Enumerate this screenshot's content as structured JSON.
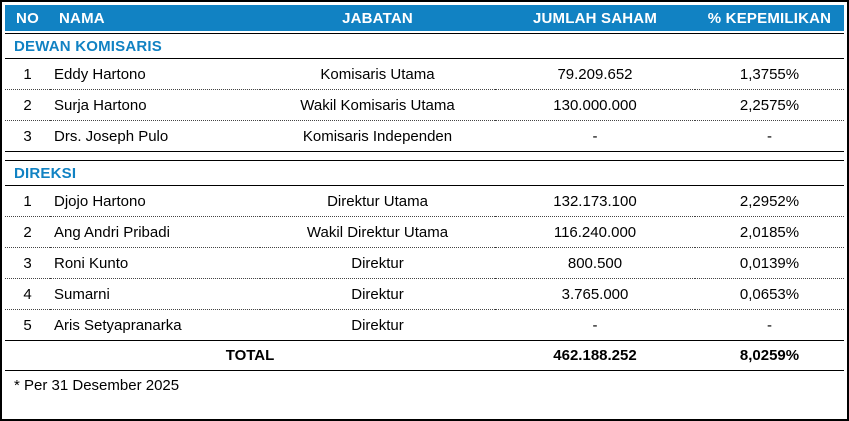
{
  "table": {
    "headers": [
      "NO",
      "NAMA",
      "JABATAN",
      "JUMLAH SAHAM",
      "% KEPEMILIKAN"
    ],
    "sections": [
      {
        "title": "DEWAN KOMISARIS",
        "rows": [
          {
            "no": "1",
            "nama": "Eddy Hartono",
            "jabatan": "Komisaris Utama",
            "jumlah_saham": "79.209.652",
            "kepemilikan": "1,3755%"
          },
          {
            "no": "2",
            "nama": "Surja Hartono",
            "jabatan": "Wakil Komisaris Utama",
            "jumlah_saham": "130.000.000",
            "kepemilikan": "2,2575%"
          },
          {
            "no": "3",
            "nama": "Drs. Joseph Pulo",
            "jabatan": "Komisaris Independen",
            "jumlah_saham": "-",
            "kepemilikan": "-"
          }
        ]
      },
      {
        "title": "DIREKSI",
        "rows": [
          {
            "no": "1",
            "nama": "Djojo Hartono",
            "jabatan": "Direktur Utama",
            "jumlah_saham": "132.173.100",
            "kepemilikan": "2,2952%"
          },
          {
            "no": "2",
            "nama": "Ang Andri Pribadi",
            "jabatan": "Wakil Direktur Utama",
            "jumlah_saham": "116.240.000",
            "kepemilikan": "2,0185%"
          },
          {
            "no": "3",
            "nama": "Roni Kunto",
            "jabatan": "Direktur",
            "jumlah_saham": "800.500",
            "kepemilikan": "0,0139%"
          },
          {
            "no": "4",
            "nama": "Sumarni",
            "jabatan": "Direktur",
            "jumlah_saham": "3.765.000",
            "kepemilikan": "0,0653%"
          },
          {
            "no": "5",
            "nama": "Aris Setyapranarka",
            "jabatan": "Direktur",
            "jumlah_saham": "-",
            "kepemilikan": "-"
          }
        ]
      }
    ],
    "total": {
      "label": "TOTAL",
      "jumlah_saham": "462.188.252",
      "kepemilikan": "8,0259%"
    },
    "footnote": "* Per 31 Desember 2025"
  },
  "colors": {
    "header_bg": "#1182C3",
    "header_text": "#FFFFFF",
    "section_text": "#1182C3",
    "border_color": "#000000"
  }
}
